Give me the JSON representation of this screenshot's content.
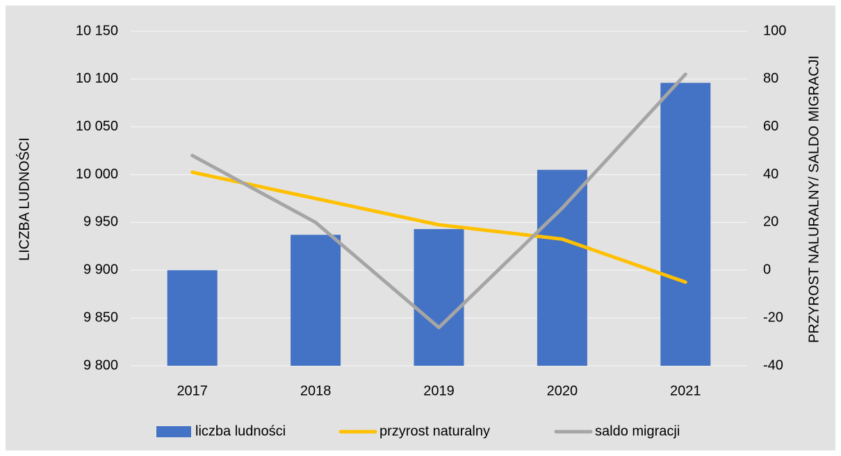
{
  "chart_data": {
    "type": "bar",
    "categories": [
      "2017",
      "2018",
      "2019",
      "2020",
      "2021"
    ],
    "series": [
      {
        "name": "liczba ludności",
        "type": "bar",
        "color": "#4472c4",
        "axis": "y",
        "values": [
          9900,
          9937,
          9943,
          10005,
          10096
        ]
      },
      {
        "name": "przyrost naturalny",
        "type": "line",
        "color": "#ffc000",
        "axis": "y2",
        "values": [
          41,
          30,
          19,
          13,
          -5
        ]
      },
      {
        "name": "saldo migracji",
        "type": "line",
        "color": "#a5a5a5",
        "axis": "y2",
        "values": [
          48,
          20,
          -24,
          26,
          82
        ]
      }
    ],
    "y_label": "LICZBA LUDNOŚCI",
    "y2_label": "PRZYROST NALURALNY/ SALDO MIGRACJI",
    "ylim": [
      9800,
      10150
    ],
    "yticks": [
      {
        "value": 9800,
        "label": "9 800"
      },
      {
        "value": 9850,
        "label": "9 850"
      },
      {
        "value": 9900,
        "label": "9 900"
      },
      {
        "value": 9950,
        "label": "9 950"
      },
      {
        "value": 10000,
        "label": "10 000"
      },
      {
        "value": 10050,
        "label": "10 050"
      },
      {
        "value": 10100,
        "label": "10 100"
      },
      {
        "value": 10150,
        "label": "10 150"
      }
    ],
    "y2lim": [
      -40,
      100
    ],
    "y2ticks": [
      -40,
      -20,
      0,
      20,
      40,
      60,
      80,
      100
    ],
    "grid": true,
    "legend": "bottom"
  }
}
